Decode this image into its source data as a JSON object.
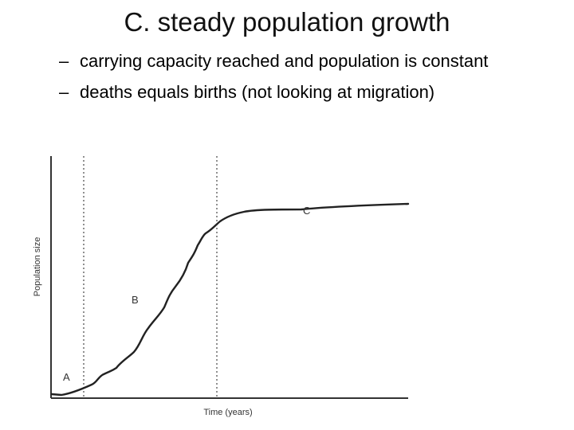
{
  "slide": {
    "title": "C. steady population growth",
    "bullets": [
      "carrying capacity reached and population is constant",
      "deaths equals births (not looking at migration)"
    ],
    "bullet_marker": "–"
  },
  "figure": {
    "x_label": "Time (years)",
    "y_label": "Population size",
    "phase_labels": [
      "A",
      "B",
      "C"
    ],
    "colors": {
      "ink": "#333333",
      "text": "#111111"
    }
  }
}
